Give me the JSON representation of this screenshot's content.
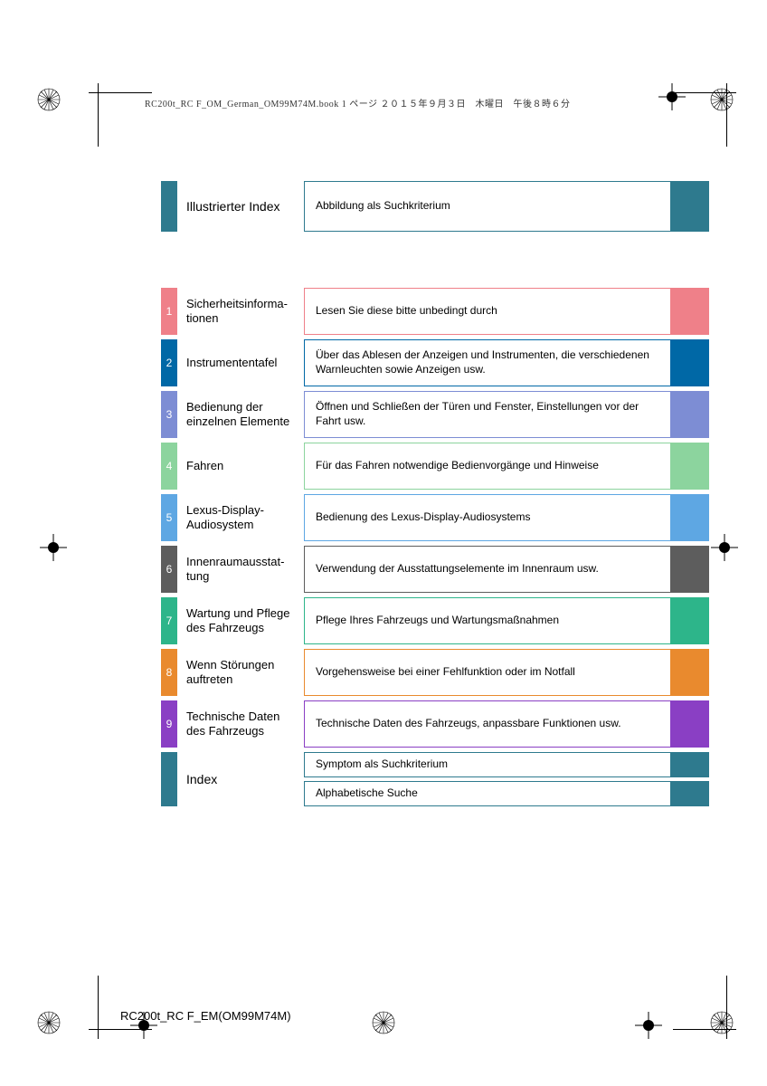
{
  "header": "RC200t_RC F_OM_German_OM99M74M.book  1 ページ  ２０１５年９月３日　木曜日　午後８時６分",
  "footer": "RC200t_RC F_EM(OM99M74M)",
  "illustrated": {
    "label": "Illustrierter Index",
    "desc": "Abbildung als Suchkriterium",
    "color": "#2e7a8e",
    "border": "#2e7a8e"
  },
  "chapters": [
    {
      "n": "1",
      "title": "Sicherheitsinforma-tionen",
      "desc": "Lesen Sie diese bitte unbedingt durch",
      "color": "#ef8089",
      "border": "#ef8089"
    },
    {
      "n": "2",
      "title": "Instrumententafel",
      "desc": "Über das Ablesen der Anzeigen und Instrumenten, die verschiedenen Warnleuchten sowie Anzeigen usw.",
      "color": "#0068a6",
      "border": "#0068a6"
    },
    {
      "n": "3",
      "title": "Bedienung der einzelnen Elemente",
      "desc": "Öffnen und Schließen der Türen und Fenster, Einstellungen vor der Fahrt usw.",
      "color": "#7d8dd4",
      "border": "#7d8dd4"
    },
    {
      "n": "4",
      "title": "Fahren",
      "desc": "Für das Fahren notwendige Bedienvorgänge und Hinweise",
      "color": "#8cd49e",
      "border": "#8cd49e"
    },
    {
      "n": "5",
      "title": "Lexus-Display-Audiosystem",
      "desc": "Bedienung des Lexus-Display-Audiosystems",
      "color": "#5ea7e3",
      "border": "#5ea7e3"
    },
    {
      "n": "6",
      "title": "Innenraumausstat-tung",
      "desc": "Verwendung der Ausstattungselemente im Innenraum usw.",
      "color": "#5d5d5d",
      "border": "#5d5d5d"
    },
    {
      "n": "7",
      "title": "Wartung und Pflege des Fahrzeugs",
      "desc": "Pflege Ihres Fahrzeugs und Wartungsmaßnahmen",
      "color": "#2db58a",
      "border": "#2db58a"
    },
    {
      "n": "8",
      "title": "Wenn Störungen auftreten",
      "desc": "Vorgehensweise bei einer Fehlfunktion oder im Notfall",
      "color": "#e98a2e",
      "border": "#e98a2e"
    },
    {
      "n": "9",
      "title": "Technische Daten des Fahrzeugs",
      "desc": "Technische Daten des Fahrzeugs, anpassbare Funktionen usw.",
      "color": "#8a3fc4",
      "border": "#8a3fc4"
    }
  ],
  "index": {
    "label": "Index",
    "rows": [
      {
        "desc": "Symptom als Suchkriterium"
      },
      {
        "desc": "Alphabetische Suche"
      }
    ],
    "color": "#2e7a8e",
    "border": "#2e7a8e"
  }
}
